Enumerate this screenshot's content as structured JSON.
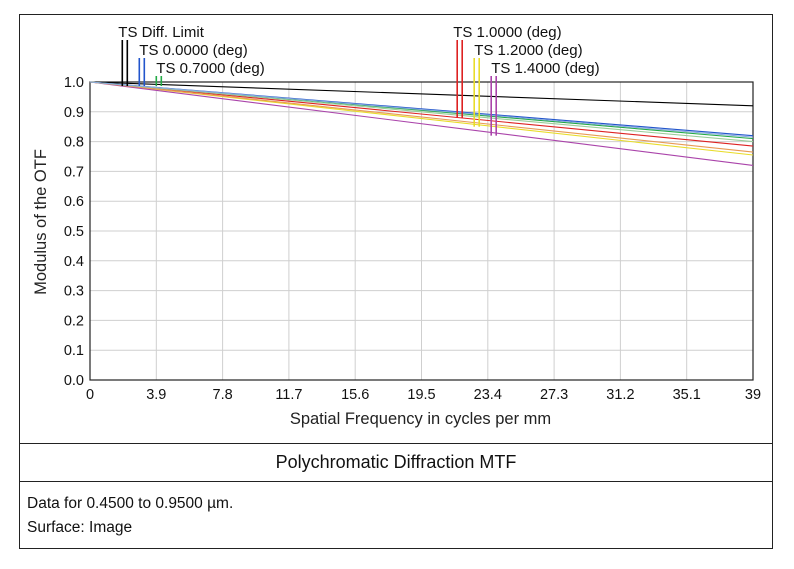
{
  "chart_data": {
    "type": "line",
    "title": "Polychromatic Diffraction MTF",
    "xlabel": "Spatial Frequency in cycles per mm",
    "ylabel": "Modulus of the OTF",
    "xlim": [
      0,
      39
    ],
    "ylim": [
      0,
      1
    ],
    "xticks": [
      "0",
      "3.9",
      "7.8",
      "11.7",
      "15.6",
      "19.5",
      "23.4",
      "27.3",
      "31.2",
      "35.1",
      "39"
    ],
    "yticks": [
      "0.0",
      "0.1",
      "0.2",
      "0.3",
      "0.4",
      "0.5",
      "0.6",
      "0.7",
      "0.8",
      "0.9",
      "1.0"
    ],
    "grid": true,
    "series": [
      {
        "name": "TS Diff. Limit",
        "color": "#000000",
        "x": [
          0,
          39
        ],
        "y": [
          1.0,
          0.92
        ]
      },
      {
        "name": "TS 0.0000 (deg)",
        "color": "#2255cc",
        "x": [
          0,
          39
        ],
        "y": [
          1.0,
          0.82
        ]
      },
      {
        "name": "TS 0.7000 (deg)",
        "color": "#22aa44",
        "x": [
          0,
          39
        ],
        "y": [
          1.0,
          0.81
        ]
      },
      {
        "name": "TS 1.0000 (deg)",
        "color": "#dd2222",
        "x": [
          0,
          39
        ],
        "y": [
          1.0,
          0.785
        ]
      },
      {
        "name": "TS 1.2000 (deg)",
        "color": "#e8dc2a",
        "x": [
          0,
          39
        ],
        "y": [
          1.0,
          0.755
        ]
      },
      {
        "name": "TS 1.4000 (deg)",
        "color": "#aa44aa",
        "x": [
          0,
          39
        ],
        "y": [
          1.0,
          0.72
        ]
      },
      {
        "name": "",
        "color": "#e89a55",
        "x": [
          0,
          39
        ],
        "y": [
          1.0,
          0.765
        ]
      },
      {
        "name": "",
        "color": "#99cc99",
        "x": [
          0,
          39
        ],
        "y": [
          1.0,
          0.8
        ]
      },
      {
        "name": "",
        "color": "#88aadd",
        "x": [
          0,
          39
        ],
        "y": [
          1.0,
          0.815
        ]
      }
    ],
    "legend": [
      {
        "text": "TS Diff. Limit",
        "colors": [
          "#000000",
          "#000000"
        ],
        "x": 1.9
      },
      {
        "text": "TS 0.0000 (deg)",
        "colors": [
          "#2255cc",
          "#2255cc"
        ],
        "x": 2.9
      },
      {
        "text": "TS 0.7000 (deg)",
        "colors": [
          "#22aa44",
          "#22aa44"
        ],
        "x": 3.9
      },
      {
        "text": "TS 1.0000 (deg)",
        "colors": [
          "#dd2222",
          "#dd2222"
        ],
        "x": 21.6
      },
      {
        "text": "TS 1.2000 (deg)",
        "colors": [
          "#e8dc2a",
          "#e8dc2a"
        ],
        "x": 22.6
      },
      {
        "text": "TS 1.4000 (deg)",
        "colors": [
          "#aa44aa",
          "#aa44aa"
        ],
        "x": 23.6
      }
    ]
  },
  "info": {
    "line1": "Data for 0.4500 to 0.9500 µm.",
    "line2": "Surface: Image"
  }
}
